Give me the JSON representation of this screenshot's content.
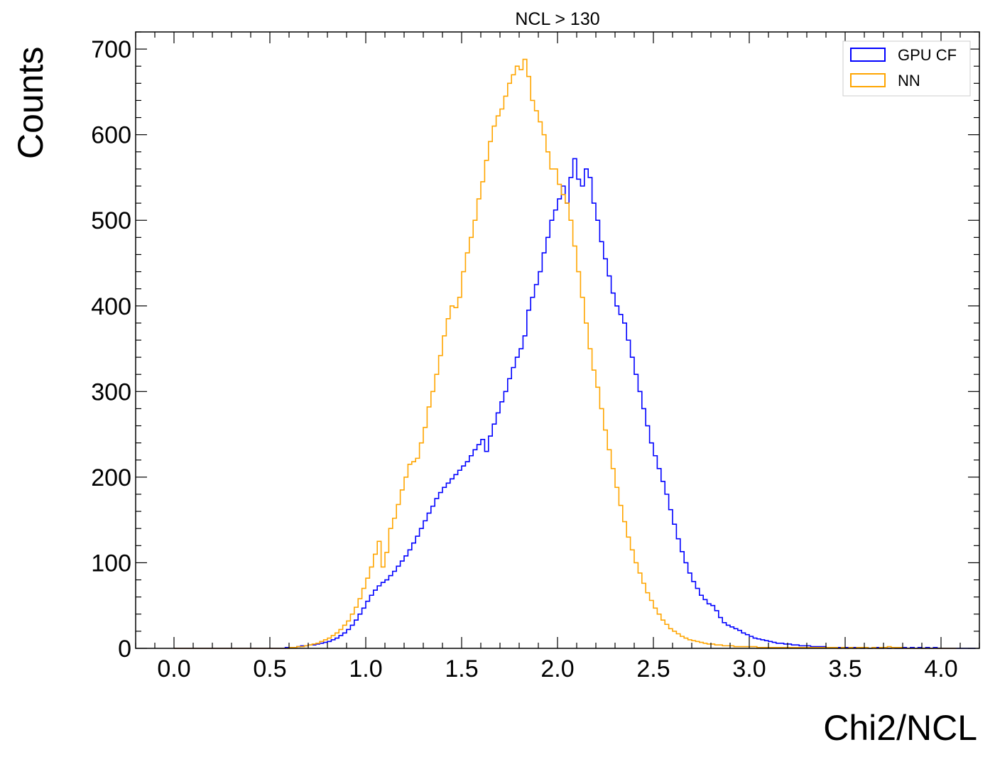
{
  "chart_data": {
    "type": "line",
    "style": "step histogram",
    "title": "NCL > 130",
    "xlabel": "Chi2/NCL",
    "ylabel": "Counts",
    "xlim": [
      -0.2,
      4.2
    ],
    "ylim": [
      0,
      720
    ],
    "x_ticks": [
      "0.0",
      "0.5",
      "1.0",
      "1.5",
      "2.0",
      "2.5",
      "3.0",
      "3.5",
      "4.0"
    ],
    "y_ticks": [
      "0",
      "100",
      "200",
      "300",
      "400",
      "500",
      "600",
      "700"
    ],
    "grid": false,
    "legend_position": "top-right",
    "bin_start": 0.0,
    "bin_width": 0.02,
    "series": [
      {
        "name": "GPU CF",
        "color": "#0000ff",
        "values": [
          0,
          0,
          0,
          0,
          0,
          0,
          0,
          0,
          0,
          0,
          0,
          0,
          0,
          0,
          0,
          0,
          0,
          0,
          0,
          0,
          0,
          0,
          0,
          0,
          0,
          0,
          0,
          0,
          0,
          1,
          1,
          1,
          2,
          3,
          3,
          4,
          4,
          5,
          6,
          7,
          8,
          10,
          12,
          15,
          18,
          22,
          27,
          33,
          40,
          47,
          55,
          62,
          68,
          73,
          77,
          80,
          85,
          90,
          96,
          102,
          108,
          115,
          123,
          131,
          140,
          149,
          158,
          166,
          175,
          182,
          188,
          193,
          198,
          203,
          208,
          213,
          218,
          225,
          232,
          238,
          244,
          230,
          248,
          262,
          275,
          288,
          300,
          315,
          328,
          340,
          350,
          365,
          395,
          410,
          425,
          440,
          462,
          480,
          500,
          512,
          525,
          540,
          520,
          550,
          572,
          548,
          540,
          560,
          550,
          520,
          500,
          475,
          455,
          435,
          415,
          400,
          390,
          380,
          360,
          340,
          320,
          300,
          280,
          260,
          240,
          225,
          210,
          195,
          180,
          162,
          145,
          128,
          113,
          100,
          88,
          78,
          70,
          62,
          57,
          52,
          50,
          44,
          36,
          30,
          27,
          25,
          23,
          21,
          18,
          16,
          14,
          12,
          11,
          10,
          9,
          8,
          7,
          6,
          6,
          5,
          5,
          4,
          4,
          3,
          3,
          3,
          2,
          2,
          2,
          2,
          1,
          1,
          1,
          1,
          1,
          1,
          1,
          1,
          1,
          0,
          1,
          0,
          1,
          1,
          0,
          1,
          0,
          1,
          0,
          0,
          1,
          0,
          1,
          0,
          1,
          0,
          1,
          0,
          1,
          0,
          0,
          0,
          0,
          0,
          0,
          0,
          0,
          0,
          0
        ]
      },
      {
        "name": "NN",
        "color": "#ffa500",
        "values": [
          0,
          0,
          0,
          0,
          0,
          0,
          0,
          0,
          0,
          0,
          0,
          0,
          0,
          0,
          0,
          0,
          0,
          0,
          0,
          0,
          0,
          0,
          0,
          0,
          0,
          0,
          0,
          0,
          0,
          0,
          1,
          1,
          2,
          2,
          3,
          4,
          5,
          6,
          8,
          10,
          12,
          15,
          18,
          22,
          27,
          32,
          40,
          48,
          58,
          70,
          82,
          95,
          110,
          125,
          95,
          112,
          140,
          152,
          168,
          185,
          200,
          215,
          218,
          222,
          240,
          258,
          282,
          300,
          320,
          342,
          365,
          385,
          400,
          398,
          410,
          440,
          462,
          480,
          500,
          525,
          545,
          570,
          592,
          610,
          622,
          630,
          645,
          660,
          670,
          680,
          676,
          688,
          668,
          640,
          628,
          615,
          600,
          580,
          560,
          560,
          542,
          530,
          520,
          500,
          470,
          440,
          410,
          380,
          350,
          325,
          305,
          280,
          255,
          232,
          210,
          188,
          167,
          148,
          130,
          115,
          100,
          88,
          76,
          65,
          56,
          47,
          40,
          33,
          28,
          23,
          20,
          17,
          14,
          12,
          10,
          9,
          8,
          7,
          6,
          5,
          5,
          4,
          4,
          3,
          3,
          3,
          2,
          2,
          2,
          2,
          2,
          2,
          1,
          1,
          1,
          1,
          1,
          1,
          1,
          1,
          1,
          1,
          1,
          1,
          1,
          1,
          1,
          1,
          1,
          1,
          1,
          1,
          1,
          0,
          1,
          0,
          1,
          0,
          1,
          1,
          1,
          0,
          1,
          0,
          1,
          1,
          2,
          1,
          1,
          1,
          0,
          0,
          0,
          0,
          0,
          0,
          0,
          0,
          0,
          0,
          0,
          0,
          0,
          0
        ]
      }
    ]
  }
}
